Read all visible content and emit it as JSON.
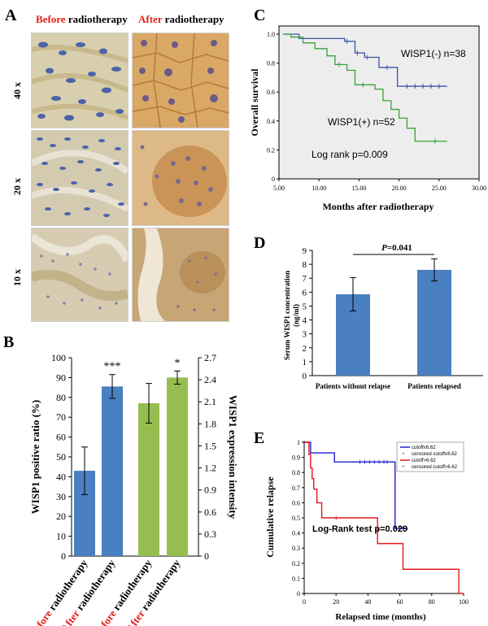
{
  "panel_labels": {
    "a": "A",
    "b": "B",
    "c": "C",
    "d": "D",
    "e": "E"
  },
  "panel_a": {
    "before_word": "Before",
    "after_word": "After",
    "radiotherapy_word": "radiotherapy",
    "magnifications": [
      "40 x",
      "20 x",
      "10 x"
    ],
    "colors": {
      "before_tint": "#c9b98a",
      "after_tint": "#c98f4a",
      "nucleus_blue": "#4a63a8"
    }
  },
  "chart_data": [
    {
      "id": "B",
      "type": "bar",
      "categories": [
        "Before radiotherapy",
        "After radiotherapy",
        "Before radiotherapy",
        "After radiotherapy"
      ],
      "category_prefix": [
        "Before",
        "After",
        "Before",
        "After"
      ],
      "category_suffix": [
        "radiotherapy",
        "radiotherapy",
        "radiotherapy",
        "radiotherapy"
      ],
      "prefix_colors": [
        "#e0201a",
        "#e0201a",
        "#e0201a",
        "#e0201a"
      ],
      "left_series": {
        "name": "WISP1 positive ratio (%)",
        "values": [
          43,
          85.5
        ],
        "errors": [
          12,
          6
        ],
        "color": "#4a7fc1"
      },
      "right_series": {
        "name": "WISP1 expression intensity",
        "values": [
          2.08,
          2.43
        ],
        "errors": [
          0.27,
          0.09
        ],
        "color": "#96bd4f"
      },
      "significance": [
        "",
        "***",
        "",
        "*"
      ],
      "ylabel": "WISP1 positive ratio (%)",
      "y2label": "WISP1 expression intensity",
      "ylim": [
        0,
        100
      ],
      "y2lim": [
        0,
        2.7
      ],
      "yticks": [
        "0",
        "10",
        "20",
        "30",
        "40",
        "50",
        "60",
        "70",
        "80",
        "90",
        "100"
      ],
      "y2ticks": [
        "0",
        "0.3",
        "0.6",
        "0.9",
        "1.2",
        "1.5",
        "1.8",
        "2.1",
        "2.4",
        "2.7"
      ]
    },
    {
      "id": "C",
      "type": "line",
      "title": "",
      "xlabel": "Months after radiotherapy",
      "ylabel": "Overall survival",
      "xlim": [
        5,
        30
      ],
      "ylim": [
        0,
        1
      ],
      "xticks": [
        "5.00",
        "10.00",
        "15.00",
        "20.00",
        "25.00",
        "30.00"
      ],
      "yticks": [
        "0",
        "0.2",
        "0.4",
        "0.6",
        "0.8",
        "1.0"
      ],
      "series": [
        {
          "name": "WISP1(-) n=38",
          "color": "#3a55a5",
          "x": [
            5.5,
            7.5,
            13.2,
            14.5,
            15.7,
            17.5,
            19.8,
            26.0
          ],
          "y": [
            1.0,
            0.97,
            0.95,
            0.87,
            0.84,
            0.77,
            0.64,
            0.64
          ],
          "censor_x": [
            13.5,
            14.8,
            16.0,
            18.5,
            21.0,
            22.0,
            23.0,
            24.0,
            25.0
          ]
        },
        {
          "name": "WISP1(+) n=52",
          "color": "#3aa13a",
          "x": [
            5.5,
            6.5,
            8.0,
            9.5,
            11.0,
            12.0,
            13.5,
            14.5,
            17.0,
            18.0,
            19.0,
            20.0,
            21.0,
            22.0,
            26.0
          ],
          "y": [
            1.0,
            0.98,
            0.94,
            0.9,
            0.85,
            0.79,
            0.75,
            0.65,
            0.62,
            0.54,
            0.48,
            0.42,
            0.35,
            0.26,
            0.26
          ],
          "censor_x": [
            12.5,
            15.5,
            24.5
          ]
        }
      ],
      "annotation": "Log rank p=0.009"
    },
    {
      "id": "D",
      "type": "bar",
      "categories": [
        "Patients without relapse",
        "Patients relapsed"
      ],
      "values": [
        5.85,
        7.6
      ],
      "errors": [
        1.2,
        0.8
      ],
      "color": "#4a7fc1",
      "ylabel": "Serum WISP1 concentration (ng/ml)",
      "ylabel_lines": [
        "Serum WISP1 concentration",
        "(ng/ml)"
      ],
      "ylim": [
        0,
        9
      ],
      "yticks": [
        "0",
        "1",
        "2",
        "3",
        "4",
        "5",
        "6",
        "7",
        "8",
        "9"
      ],
      "pvalue_letter": "P",
      "pvalue_rest": "=0.041"
    },
    {
      "id": "E",
      "type": "line",
      "xlabel": "Relapsed time (months)",
      "ylabel": "Cumulative relapse",
      "xlim": [
        0,
        100
      ],
      "ylim": [
        0,
        1
      ],
      "xticks": [
        "0",
        "20",
        "40",
        "60",
        "80",
        "100"
      ],
      "yticks": [
        "0",
        "0.1",
        "0.2",
        "0.3",
        "0.4",
        "0.5",
        "0.6",
        "0.7",
        "0.8",
        "0.9",
        "1"
      ],
      "legend": [
        "cutoff≤6.62",
        "censored cutoff≤6.62",
        "cutoff>6.62",
        "censored cutoff>6.62"
      ],
      "series": [
        {
          "name": "cutoff≤6.62",
          "color": "#2020d0",
          "x": [
            0,
            4,
            19,
            54,
            57,
            65
          ],
          "y": [
            1.0,
            0.93,
            0.87,
            0.87,
            0.43,
            0.43
          ],
          "censor_x": [
            35,
            38,
            41,
            44,
            47,
            50,
            52,
            60,
            62,
            64
          ]
        },
        {
          "name": "cutoff>6.62",
          "color": "#e01818",
          "x": [
            0,
            3,
            4,
            5,
            6,
            8,
            11,
            46,
            62,
            97,
            100
          ],
          "y": [
            1.0,
            0.92,
            0.83,
            0.76,
            0.69,
            0.6,
            0.5,
            0.33,
            0.16,
            0.0,
            0.0
          ],
          "censor_x": [
            20
          ]
        }
      ],
      "annotation": "Log-Rank test p=0.029"
    }
  ]
}
